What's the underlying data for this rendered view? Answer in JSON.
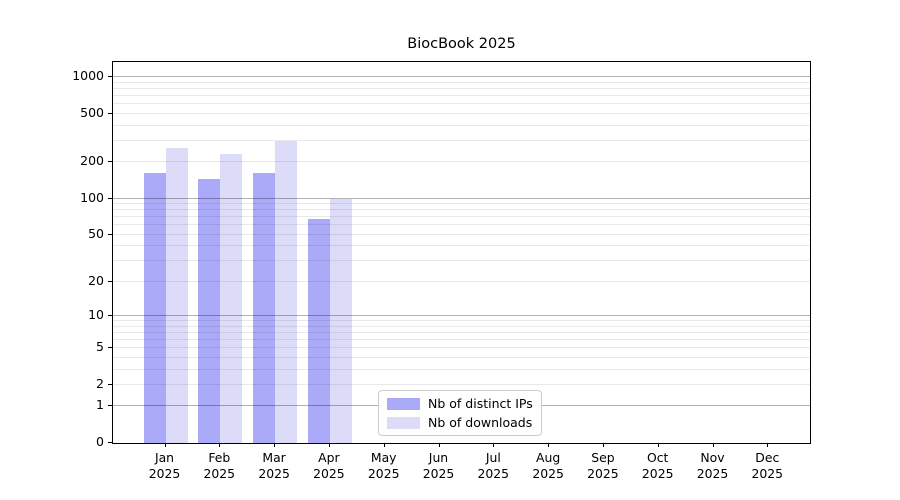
{
  "title": "BiocBook 2025",
  "chart_data": {
    "type": "bar",
    "title": "BiocBook 2025",
    "categories": [
      "Jan",
      "Feb",
      "Mar",
      "Apr",
      "May",
      "Jun",
      "Jul",
      "Aug",
      "Sep",
      "Oct",
      "Nov",
      "Dec"
    ],
    "year_label": "2025",
    "series": [
      {
        "name": "Nb of distinct IPs",
        "color": "#aaaaf8",
        "values": [
          162,
          145,
          164,
          68,
          0,
          0,
          0,
          0,
          0,
          0,
          0,
          0
        ]
      },
      {
        "name": "Nb of downloads",
        "color": "#dcdcf8",
        "values": [
          262,
          234,
          300,
          100,
          0,
          0,
          0,
          0,
          0,
          0,
          0,
          0
        ]
      }
    ],
    "xlabel": "",
    "ylabel": "",
    "yscale": "log10(value+1)",
    "ylim": [
      0,
      1333
    ],
    "yticks": [
      0,
      1,
      2,
      5,
      10,
      20,
      50,
      100,
      200,
      500,
      1000
    ],
    "major_gridlines": [
      1,
      10,
      100,
      1000
    ],
    "minor_gridlines": [
      2,
      3,
      4,
      5,
      6,
      7,
      8,
      9,
      20,
      30,
      40,
      50,
      60,
      70,
      80,
      90,
      200,
      300,
      400,
      500,
      600,
      700,
      800,
      900
    ],
    "grid": true,
    "legend_position": "lower center-left inside plot",
    "colors": {
      "background": "#ffffff",
      "spine": "#000000",
      "major_grid": "rgba(0,0,0,0.30)",
      "minor_grid": "rgba(0,0,0,0.085)"
    }
  },
  "legend": {
    "items": [
      {
        "label": "Nb of distinct IPs"
      },
      {
        "label": "Nb of downloads"
      }
    ]
  }
}
